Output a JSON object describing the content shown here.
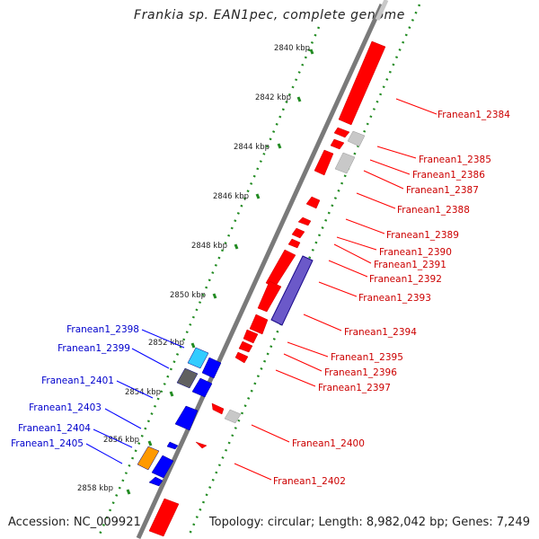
{
  "title": "Frankia sp. EAN1pec, complete genome",
  "accession": "Accession: NC_009921",
  "topology": "Topology: circular; Length: 8,982,042 bp; Genes: 7,249",
  "colors": {
    "forward_gene": "#ff0000",
    "reverse_gene": "#0000ff",
    "label_forward": "#cc0000",
    "label_reverse": "#0000cc",
    "dotted_track": "#228b22",
    "backbone": "#808080",
    "highlight_cyan": "#33ccff",
    "highlight_orange": "#ff9900",
    "highlight_blue": "#6b59c9"
  },
  "ticks": [
    "2840 kbp",
    "2842 kbp",
    "2844 kbp",
    "2846 kbp",
    "2848 kbp",
    "2850 kbp",
    "2852 kbp",
    "2854 kbp",
    "2856 kbp",
    "2858 kbp"
  ],
  "forward_labels": [
    "Franean1_2384",
    "Franean1_2385",
    "Franean1_2386",
    "Franean1_2387",
    "Franean1_2388",
    "Franean1_2389",
    "Franean1_2390",
    "Franean1_2391",
    "Franean1_2392",
    "Franean1_2393",
    "Franean1_2394",
    "Franean1_2395",
    "Franean1_2396",
    "Franean1_2397",
    "Franean1_2400",
    "Franean1_2402"
  ],
  "reverse_labels": [
    "Franean1_2398",
    "Franean1_2399",
    "Franean1_2401",
    "Franean1_2403",
    "Franean1_2404",
    "Franean1_2405"
  ]
}
